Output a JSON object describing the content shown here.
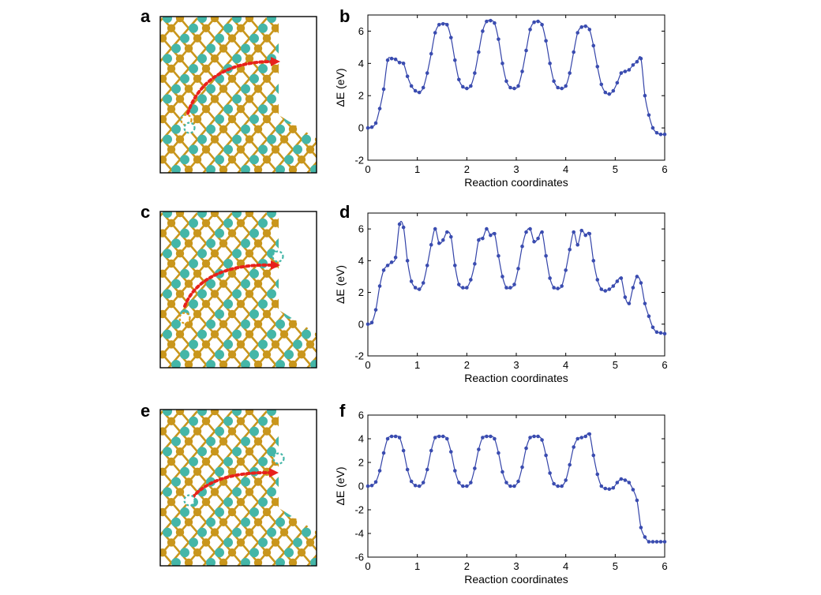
{
  "colors": {
    "curve": "#3343a8",
    "marker": "#3a4cb0",
    "axis": "#000000",
    "atom_gold": "#c9961c",
    "atom_teal": "#44b6a8",
    "bond": "#c9961c",
    "path_arrow": "#e8211c",
    "vacancy_teal": "#44b6a8",
    "vacancy_gold": "#d89a1a"
  },
  "panels": [
    {
      "label": "a",
      "structure": "mos2-edge",
      "icon": "atomic-structure-with-migration-path"
    },
    {
      "label": "b"
    },
    {
      "label": "c",
      "structure": "mos2-edge",
      "icon": "atomic-structure-with-migration-path"
    },
    {
      "label": "d"
    },
    {
      "label": "e",
      "structure": "mos2-edge",
      "icon": "atomic-structure-with-migration-path"
    },
    {
      "label": "f"
    }
  ],
  "chart_data": [
    {
      "type": "line",
      "panel": "b",
      "title": "",
      "xlabel": "Reaction coordinates",
      "ylabel": "ΔE (eV)",
      "xlim": [
        0,
        6
      ],
      "ylim": [
        -2,
        7
      ],
      "xticks": [
        "0",
        "1",
        "2",
        "3",
        "4",
        "5",
        "6"
      ],
      "yticks": [
        "-2",
        "0",
        "2",
        "4",
        "6"
      ],
      "grid": false,
      "legend": "none",
      "markers": true,
      "x": [
        0,
        0.08,
        0.16,
        0.24,
        0.32,
        0.4,
        0.48,
        0.56,
        0.64,
        0.72,
        0.8,
        0.88,
        0.96,
        1.04,
        1.12,
        1.2,
        1.28,
        1.36,
        1.44,
        1.52,
        1.6,
        1.68,
        1.76,
        1.84,
        1.92,
        2.0,
        2.08,
        2.16,
        2.24,
        2.32,
        2.4,
        2.48,
        2.56,
        2.64,
        2.72,
        2.8,
        2.88,
        2.96,
        3.04,
        3.12,
        3.2,
        3.28,
        3.36,
        3.44,
        3.52,
        3.6,
        3.68,
        3.76,
        3.84,
        3.92,
        4.0,
        4.08,
        4.16,
        4.24,
        4.32,
        4.4,
        4.48,
        4.56,
        4.64,
        4.72,
        4.8,
        4.88,
        4.96,
        5.04,
        5.12,
        5.2,
        5.28,
        5.36,
        5.44,
        5.52,
        5.6,
        5.68,
        5.76,
        5.84,
        5.92,
        6.0
      ],
      "values": [
        0,
        0.05,
        0.3,
        1.2,
        2.4,
        4.2,
        4.3,
        4.25,
        4.05,
        4.0,
        3.2,
        2.6,
        2.3,
        2.2,
        2.5,
        3.4,
        4.6,
        5.9,
        6.4,
        6.45,
        6.4,
        5.6,
        4.2,
        3.0,
        2.55,
        2.45,
        2.6,
        3.4,
        4.7,
        6.0,
        6.6,
        6.65,
        6.5,
        5.5,
        4.0,
        2.9,
        2.5,
        2.45,
        2.6,
        3.5,
        4.8,
        6.1,
        6.55,
        6.6,
        6.4,
        5.4,
        4.0,
        2.9,
        2.5,
        2.45,
        2.6,
        3.4,
        4.7,
        5.9,
        6.25,
        6.3,
        6.1,
        5.1,
        3.8,
        2.7,
        2.2,
        2.1,
        2.3,
        2.8,
        3.4,
        3.5,
        3.6,
        3.9,
        4.1,
        4.3,
        2.0,
        0.8,
        0.0,
        -0.3,
        -0.4,
        -0.4
      ]
    },
    {
      "type": "line",
      "panel": "d",
      "title": "",
      "xlabel": "Reaction coordinates",
      "ylabel": "ΔE (eV)",
      "xlim": [
        0,
        6
      ],
      "ylim": [
        -2,
        7
      ],
      "xticks": [
        "0",
        "1",
        "2",
        "3",
        "4",
        "5",
        "6"
      ],
      "yticks": [
        "-2",
        "0",
        "2",
        "4",
        "6"
      ],
      "grid": false,
      "legend": "none",
      "markers": true,
      "x": [
        0,
        0.08,
        0.16,
        0.24,
        0.32,
        0.4,
        0.48,
        0.56,
        0.64,
        0.72,
        0.8,
        0.88,
        0.96,
        1.04,
        1.12,
        1.2,
        1.28,
        1.36,
        1.44,
        1.52,
        1.6,
        1.68,
        1.76,
        1.84,
        1.92,
        2.0,
        2.08,
        2.16,
        2.24,
        2.32,
        2.4,
        2.48,
        2.56,
        2.64,
        2.72,
        2.8,
        2.88,
        2.96,
        3.04,
        3.12,
        3.2,
        3.28,
        3.36,
        3.44,
        3.52,
        3.6,
        3.68,
        3.76,
        3.84,
        3.92,
        4.0,
        4.08,
        4.16,
        4.24,
        4.32,
        4.4,
        4.48,
        4.56,
        4.64,
        4.72,
        4.8,
        4.88,
        4.96,
        5.04,
        5.12,
        5.2,
        5.28,
        5.36,
        5.44,
        5.52,
        5.6,
        5.68,
        5.76,
        5.84,
        5.92,
        6.0
      ],
      "values": [
        0,
        0.1,
        0.9,
        2.4,
        3.4,
        3.7,
        3.9,
        4.2,
        6.3,
        6.1,
        4.0,
        2.7,
        2.3,
        2.2,
        2.6,
        3.7,
        5.0,
        6.0,
        5.1,
        5.3,
        5.8,
        5.5,
        3.7,
        2.5,
        2.3,
        2.3,
        2.8,
        3.8,
        5.3,
        5.4,
        6.0,
        5.6,
        5.7,
        4.3,
        3.0,
        2.3,
        2.3,
        2.5,
        3.5,
        4.9,
        5.8,
        6.0,
        5.2,
        5.4,
        5.8,
        4.3,
        2.9,
        2.3,
        2.25,
        2.4,
        3.4,
        4.7,
        5.8,
        5.0,
        5.9,
        5.6,
        5.7,
        4.0,
        2.8,
        2.2,
        2.1,
        2.2,
        2.4,
        2.7,
        2.9,
        1.7,
        1.3,
        2.3,
        3.0,
        2.6,
        1.3,
        0.5,
        -0.2,
        -0.5,
        -0.55,
        -0.6
      ]
    },
    {
      "type": "line",
      "panel": "f",
      "title": "",
      "xlabel": "Reaction coordinates",
      "ylabel": "ΔE (eV)",
      "xlim": [
        0,
        6
      ],
      "ylim": [
        -6,
        6
      ],
      "xticks": [
        "0",
        "1",
        "2",
        "3",
        "4",
        "5",
        "6"
      ],
      "yticks": [
        "-6",
        "-4",
        "-2",
        "0",
        "2",
        "4",
        "6"
      ],
      "grid": false,
      "legend": "none",
      "markers": true,
      "x": [
        0,
        0.08,
        0.16,
        0.24,
        0.32,
        0.4,
        0.48,
        0.56,
        0.64,
        0.72,
        0.8,
        0.88,
        0.96,
        1.04,
        1.12,
        1.2,
        1.28,
        1.36,
        1.44,
        1.52,
        1.6,
        1.68,
        1.76,
        1.84,
        1.92,
        2.0,
        2.08,
        2.16,
        2.24,
        2.32,
        2.4,
        2.48,
        2.56,
        2.64,
        2.72,
        2.8,
        2.88,
        2.96,
        3.04,
        3.12,
        3.2,
        3.28,
        3.36,
        3.44,
        3.52,
        3.6,
        3.68,
        3.76,
        3.84,
        3.92,
        4.0,
        4.08,
        4.16,
        4.24,
        4.32,
        4.4,
        4.48,
        4.56,
        4.64,
        4.72,
        4.8,
        4.88,
        4.96,
        5.04,
        5.12,
        5.2,
        5.28,
        5.36,
        5.44,
        5.52,
        5.6,
        5.68,
        5.76,
        5.84,
        5.92,
        6.0
      ],
      "values": [
        0,
        0.05,
        0.35,
        1.3,
        2.8,
        4.0,
        4.2,
        4.2,
        4.1,
        3.0,
        1.4,
        0.4,
        0.05,
        0.0,
        0.3,
        1.4,
        3.0,
        4.1,
        4.2,
        4.2,
        4.0,
        2.9,
        1.3,
        0.3,
        0.0,
        0.0,
        0.3,
        1.5,
        3.1,
        4.1,
        4.2,
        4.2,
        4.0,
        2.8,
        1.2,
        0.3,
        0.0,
        0.0,
        0.4,
        1.6,
        3.2,
        4.1,
        4.2,
        4.2,
        3.9,
        2.6,
        1.1,
        0.2,
        0.0,
        0.0,
        0.5,
        1.8,
        3.3,
        4.0,
        4.1,
        4.2,
        4.4,
        2.6,
        1.0,
        0.0,
        -0.2,
        -0.25,
        -0.15,
        0.3,
        0.6,
        0.5,
        0.3,
        -0.3,
        -1.2,
        -3.5,
        -4.3,
        -4.7,
        -4.7,
        -4.7,
        -4.7,
        -4.7
      ]
    }
  ]
}
